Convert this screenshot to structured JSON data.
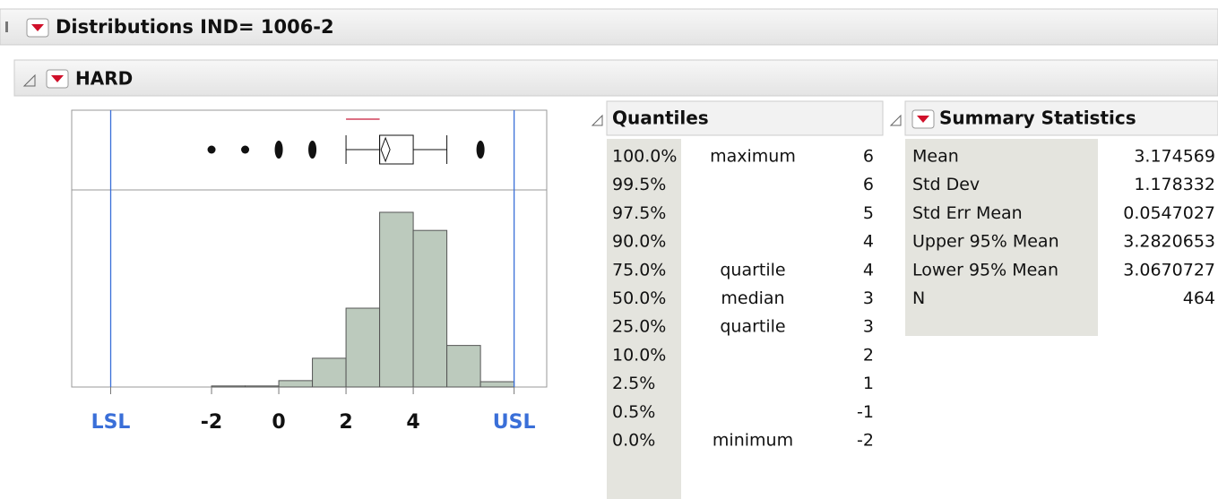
{
  "header": {
    "title": "Distributions IND= 1006-2"
  },
  "section": {
    "title": "HARD"
  },
  "chart_data": {
    "type": "histogram",
    "bins": [
      -2,
      -1,
      0,
      1,
      2,
      3,
      4,
      5,
      6,
      7
    ],
    "counts": [
      1,
      1,
      6,
      27,
      74,
      164,
      147,
      39,
      5
    ],
    "color": "#bccabd",
    "xlim": [
      -6.16,
      7.97
    ],
    "ylim": [
      0,
      185
    ],
    "xticks": [
      {
        "value": -5,
        "label": "LSL"
      },
      -2,
      0,
      2,
      4,
      {
        "value": 7,
        "label": "USL"
      }
    ],
    "spec_color": "#3a6fd8",
    "box": {
      "whiskers": [
        2,
        5
      ],
      "outliers": [
        -2,
        -1,
        0,
        1,
        6
      ],
      "shortest_half": [
        2,
        3
      ]
    }
  },
  "quantiles": {
    "title": "Quantiles",
    "rows": [
      [
        "100.0%",
        "maximum",
        6
      ],
      [
        "99.5%",
        null,
        6
      ],
      [
        "97.5%",
        null,
        5
      ],
      [
        "90.0%",
        null,
        4
      ],
      [
        "75.0%",
        "quartile",
        4
      ],
      [
        "50.0%",
        "median",
        3
      ],
      [
        "25.0%",
        "quartile",
        3
      ],
      [
        "10.0%",
        null,
        2
      ],
      [
        "2.5%",
        null,
        1
      ],
      [
        "0.5%",
        null,
        -1
      ],
      [
        "0.0%",
        "minimum",
        -2
      ]
    ]
  },
  "summary": {
    "title": "Summary Statistics",
    "rows": [
      [
        "Mean",
        3.174569
      ],
      [
        "Std Dev",
        1.178332
      ],
      [
        "Std Err Mean",
        0.0547027
      ],
      [
        "Upper 95% Mean",
        3.2820653
      ],
      [
        "Lower 95% Mean",
        3.0670727
      ],
      [
        "N",
        464
      ]
    ]
  }
}
